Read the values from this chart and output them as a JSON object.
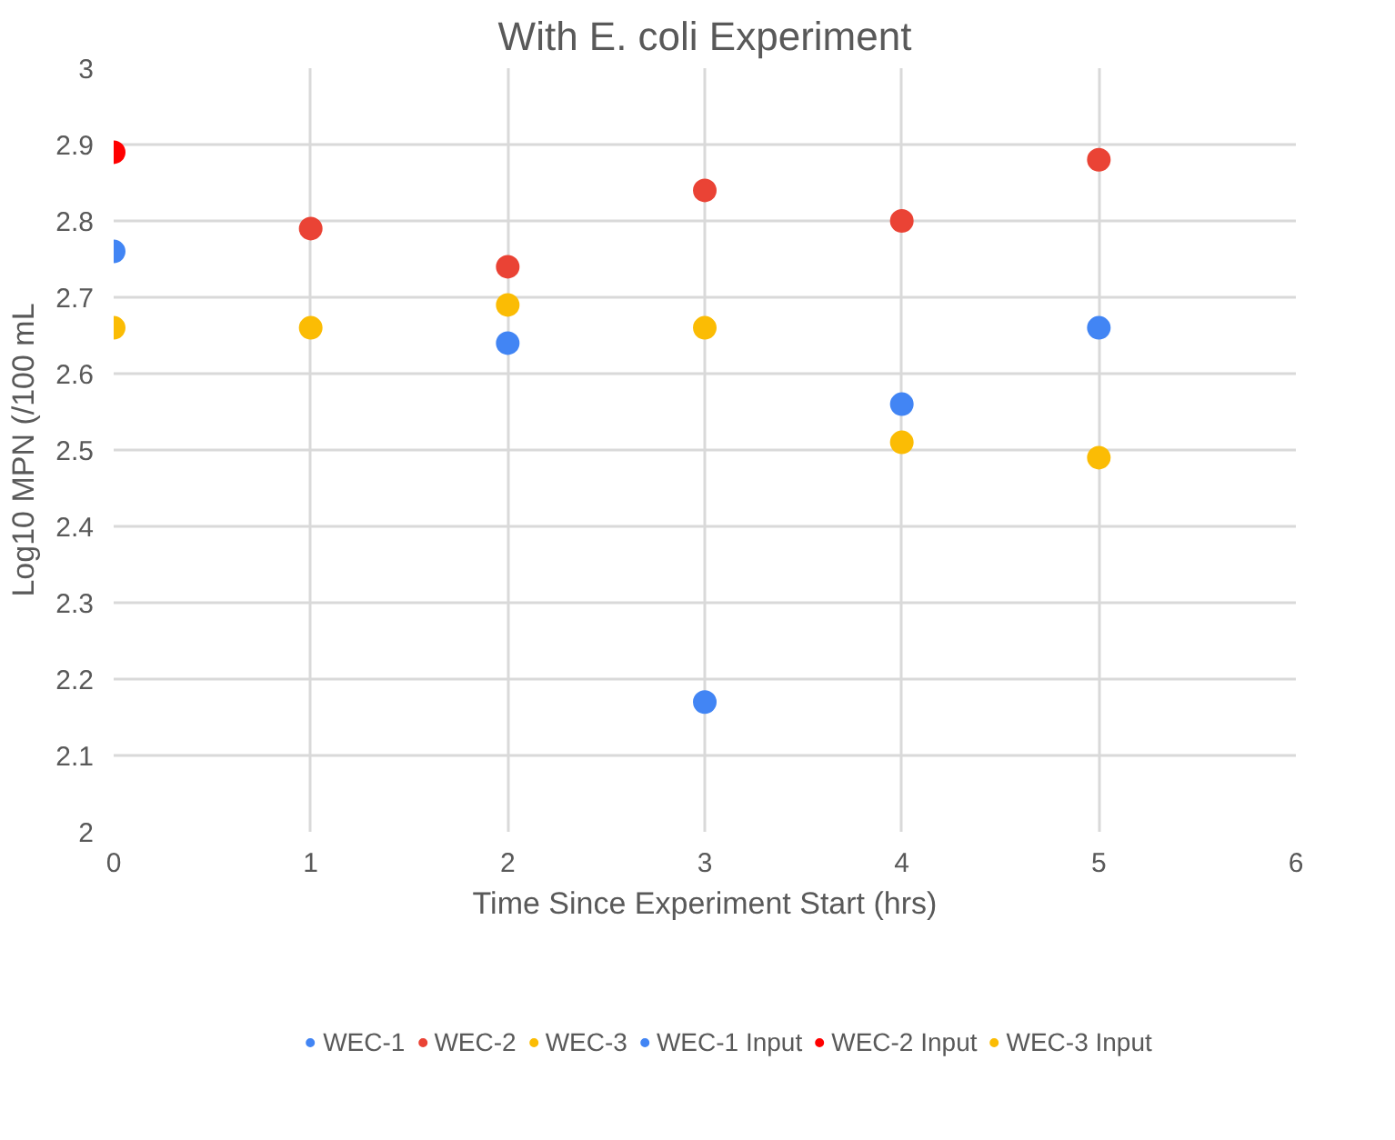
{
  "chart_data": {
    "type": "scatter",
    "title": "With E. coli Experiment",
    "xlabel": "Time Since Experiment Start (hrs)",
    "ylabel": "Log10 MPN (/100 mL",
    "x": [
      1,
      2,
      3,
      4,
      5
    ],
    "series": [
      {
        "name": "WEC-1",
        "color": "#4285f4",
        "x": [
          2,
          3,
          4,
          5
        ],
        "values": [
          2.64,
          2.17,
          2.56,
          2.66
        ]
      },
      {
        "name": "WEC-2",
        "color": "#ea4335",
        "values": [
          2.79,
          2.74,
          2.84,
          2.8,
          2.88
        ]
      },
      {
        "name": "WEC-3",
        "color": "#fbbc04",
        "values": [
          2.66,
          2.69,
          2.66,
          2.51,
          2.49
        ]
      },
      {
        "name": "WEC-1 Input",
        "color": "#4285f4",
        "x": [
          0
        ],
        "values": [
          2.76
        ]
      },
      {
        "name": "WEC-2 Input",
        "color": "#ff0000",
        "x": [
          0
        ],
        "values": [
          2.89
        ]
      },
      {
        "name": "WEC-3 Input",
        "color": "#fbbc04",
        "x": [
          0
        ],
        "values": [
          2.66
        ]
      }
    ],
    "xlim": [
      0,
      6
    ],
    "xticks": [
      0,
      1,
      2,
      3,
      4,
      5,
      6
    ],
    "ylim": [
      2,
      3
    ],
    "yticks": [
      2,
      2.1,
      2.2,
      2.3,
      2.4,
      2.5,
      2.6,
      2.7,
      2.8,
      2.9,
      3
    ],
    "grid": true,
    "legend": "bottom",
    "marker": "circle"
  }
}
